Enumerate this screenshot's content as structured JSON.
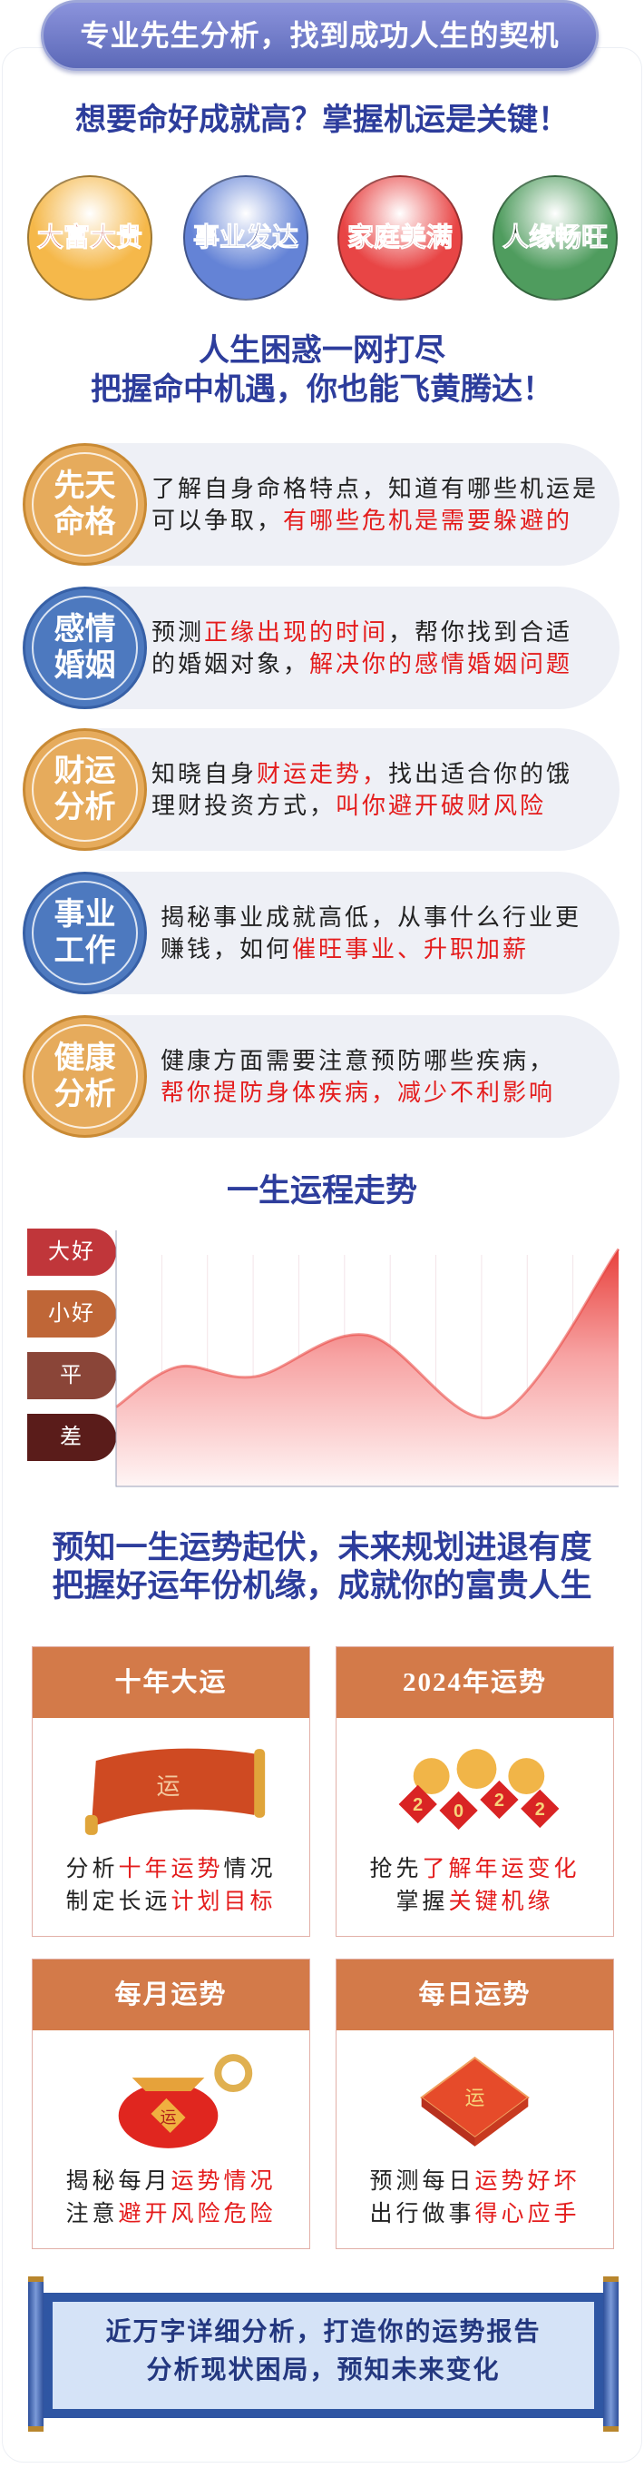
{
  "banner": "专业先生分析，找到成功人生的契机",
  "headline1": "想要命好成就高？掌握机运是关键！",
  "balls": [
    {
      "label": "大富大贵",
      "color": "#f5b84a",
      "text_color": "#b5221b"
    },
    {
      "label": "事业发达",
      "color": "#6483d6",
      "text_color": "#1e2f7a"
    },
    {
      "label": "家庭美满",
      "color": "#e84545",
      "text_color": "#8a1010"
    },
    {
      "label": "人缘畅旺",
      "color": "#4f9c5e",
      "text_color": "#1f3a22"
    }
  ],
  "headline2": [
    "人生困惑一网打尽",
    "把握命中机遇，你也能飞黄腾达！"
  ],
  "features": [
    {
      "badge": [
        "先天",
        "命格"
      ],
      "style": "gold",
      "text": "了解自身命格特点，知道有哪些机运是可以争取，",
      "highlight": "有哪些危机是需要躲避的",
      "tail": ""
    },
    {
      "badge": [
        "感情",
        "婚姻"
      ],
      "style": "blue",
      "pre": "预测",
      "highlight1": "正缘出现的时间",
      "mid": "，帮你找到合适的婚姻对象，",
      "highlight2": "解决你的感情婚姻问题"
    },
    {
      "badge": [
        "财运",
        "分析"
      ],
      "style": "gold",
      "pre": "知晓自身",
      "highlight1": "财运走势，",
      "mid": "找出适合你的饿理财投资方式，",
      "highlight2": "叫你避开破财风险"
    },
    {
      "badge": [
        "事业",
        "工作"
      ],
      "style": "blue",
      "pre": "揭秘事业成就高低，从事什么行业更赚钱，如何",
      "highlight1": "催旺事业、升职加薪",
      "mid": "",
      "highlight2": ""
    },
    {
      "badge": [
        "健康",
        "分析"
      ],
      "style": "gold",
      "pre": "健康方面需要注意预防哪些疾病，",
      "highlight1": "帮你提防身体疾病，减少不利影响",
      "mid": "",
      "highlight2": ""
    }
  ],
  "chart_title": "一生运程走势",
  "chart_data": {
    "type": "area",
    "title": "一生运程走势",
    "y_levels": [
      "差",
      "平",
      "小好",
      "大好"
    ],
    "level_colors": [
      "#5a1c1a",
      "#8a4538",
      "#bf6637",
      "#c0363a"
    ],
    "x": [
      0,
      1.35,
      3.06,
      5.5,
      8.3,
      11
    ],
    "values": [
      0.43,
      1.1,
      0.94,
      1.63,
      0.27,
      3.07
    ],
    "xlim": [
      0,
      11
    ],
    "ylim": [
      -0.9,
      3.2
    ],
    "grid": "vertical",
    "color": "#e8413c"
  },
  "headline3": [
    "预知一生运势起伏，未来规划进退有度",
    "把握好运年份机缘，成就你的富贵人生"
  ],
  "cards": [
    {
      "title": "十年大运",
      "icon": "scroll-icon",
      "l1a": "分析",
      "l1b": "十年运势",
      "l1c": "情况",
      "l2a": "制定长远",
      "l2b": "计划目标"
    },
    {
      "title": "2024年运势",
      "icon": "tigers-icon",
      "l1a": "抢先",
      "l1b": "了解年运变化",
      "l1c": "",
      "l2a": "掌握",
      "l2b": "关键机缘"
    },
    {
      "title": "每月运势",
      "icon": "lucky-bag-icon",
      "l1a": "揭秘每月",
      "l1b": "运势情况",
      "l1c": "",
      "l2a": "注意",
      "l2b": "避开风险危险"
    },
    {
      "title": "每日运势",
      "icon": "gift-box-icon",
      "l1a": "预测每日",
      "l1b": "运势好坏",
      "l1c": "",
      "l2a": "出行做事",
      "l2b": "得心应手"
    }
  ],
  "card_glyph": "运",
  "tiger_digits": [
    "2",
    "0",
    "2",
    "2"
  ],
  "footer": [
    "近万字详细分析，打造你的运势报告",
    "分析现状困局，预知未来变化"
  ]
}
